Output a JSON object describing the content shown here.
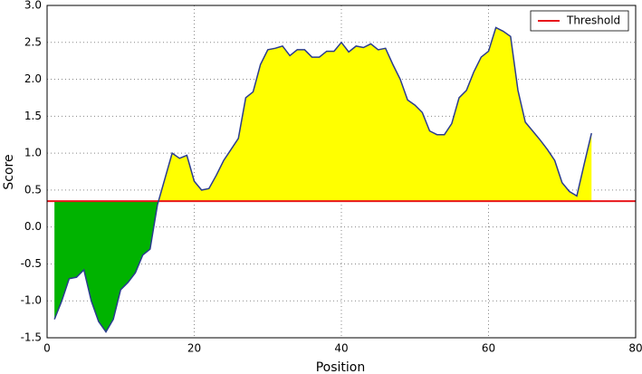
{
  "chart_data": {
    "type": "area-threshold",
    "xlabel": "Position",
    "ylabel": "Score",
    "x": [
      1,
      2,
      3,
      4,
      5,
      6,
      7,
      8,
      9,
      10,
      11,
      12,
      13,
      14,
      15,
      16,
      17,
      18,
      19,
      20,
      21,
      22,
      23,
      24,
      25,
      26,
      27,
      28,
      29,
      30,
      31,
      32,
      33,
      34,
      35,
      36,
      37,
      38,
      39,
      40,
      41,
      42,
      43,
      44,
      45,
      46,
      47,
      48,
      49,
      50,
      51,
      52,
      53,
      54,
      55,
      56,
      57,
      58,
      59,
      60,
      61,
      62,
      63,
      64,
      65,
      66,
      67,
      68,
      69,
      70,
      71,
      72,
      73,
      74
    ],
    "series": [
      {
        "color": "#2b3c8f",
        "above_color": "#ffff00",
        "below_color": "#00b300",
        "values": [
          -1.25,
          -1.0,
          -0.7,
          -0.68,
          -0.58,
          -1.0,
          -1.28,
          -1.42,
          -1.25,
          -0.85,
          -0.75,
          -0.62,
          -0.38,
          -0.3,
          0.3,
          0.65,
          1.0,
          0.93,
          0.97,
          0.62,
          0.5,
          0.52,
          0.7,
          0.9,
          1.05,
          1.2,
          1.75,
          1.83,
          2.2,
          2.4,
          2.42,
          2.45,
          2.32,
          2.4,
          2.4,
          2.3,
          2.3,
          2.38,
          2.38,
          2.5,
          2.37,
          2.45,
          2.43,
          2.48,
          2.4,
          2.42,
          2.2,
          2.0,
          1.72,
          1.65,
          1.55,
          1.3,
          1.25,
          1.25,
          1.4,
          1.75,
          1.85,
          2.1,
          2.3,
          2.38,
          2.7,
          2.65,
          2.58,
          1.85,
          1.42,
          1.3,
          1.18,
          1.05,
          0.9,
          0.6,
          0.48,
          0.42,
          0.85,
          1.27
        ]
      }
    ],
    "threshold": {
      "name": "Threshold",
      "value": 0.35,
      "color": "#e8161b"
    },
    "xlim": [
      0,
      80
    ],
    "xticks": [
      0,
      20,
      40,
      60,
      80
    ],
    "ylim": [
      -1.5,
      3.0
    ],
    "yticks": [
      {
        "value": -1.5,
        "label": "-1.5"
      },
      {
        "value": -1.0,
        "label": "-1.0"
      },
      {
        "value": -0.5,
        "label": "-0.5"
      },
      {
        "value": 0,
        "label": "0.0"
      },
      {
        "value": 0.5,
        "label": "0.5"
      },
      {
        "value": 1.0,
        "label": "1.0"
      },
      {
        "value": 1.5,
        "label": "1.5"
      },
      {
        "value": 2.0,
        "label": "2.0"
      },
      {
        "value": 2.5,
        "label": "2.5"
      },
      {
        "value": 3.0,
        "label": "3.0"
      }
    ],
    "grid": true,
    "legend": "upper right"
  }
}
